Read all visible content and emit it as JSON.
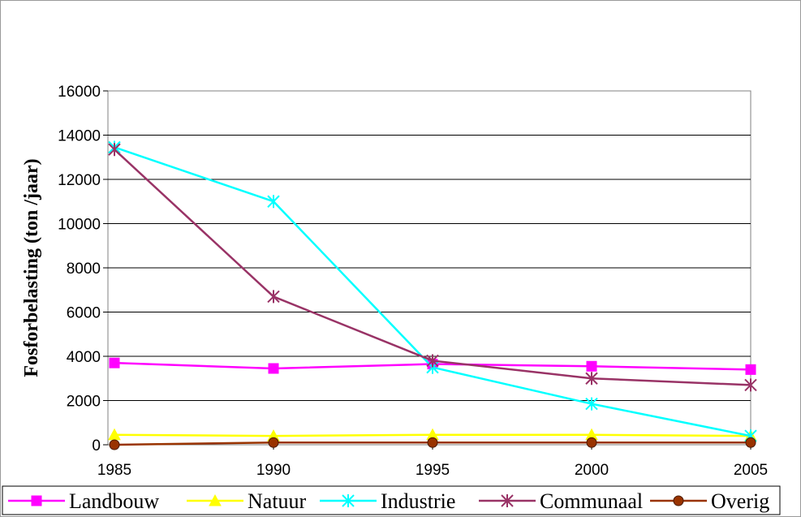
{
  "chart_data": {
    "type": "line",
    "ylabel": "Fosforbelasting (ton /jaar)",
    "xlabel": "",
    "title": "",
    "x": [
      1985,
      1990,
      1995,
      2000,
      2005
    ],
    "ylim": [
      0,
      16000
    ],
    "yticks": [
      0,
      2000,
      4000,
      6000,
      8000,
      10000,
      12000,
      14000,
      16000
    ],
    "grid": "horizontal",
    "legend_position": "bottom",
    "series": [
      {
        "name": "Landbouw",
        "color": "#ff00ff",
        "marker": "square",
        "values": [
          3700,
          3450,
          3650,
          3550,
          3400
        ]
      },
      {
        "name": "Natuur",
        "color": "#ffff00",
        "marker": "triangle",
        "values": [
          450,
          400,
          450,
          450,
          400
        ]
      },
      {
        "name": "Industrie",
        "color": "#00ffff",
        "marker": "asterisk",
        "values": [
          13450,
          11000,
          3500,
          1850,
          400
        ]
      },
      {
        "name": "Communaal",
        "color": "#993366",
        "marker": "x-star",
        "values": [
          13350,
          6700,
          3800,
          3000,
          2700
        ]
      },
      {
        "name": "Overig",
        "color": "#993300",
        "marker": "circle",
        "values": [
          0,
          100,
          100,
          100,
          100
        ]
      }
    ]
  }
}
